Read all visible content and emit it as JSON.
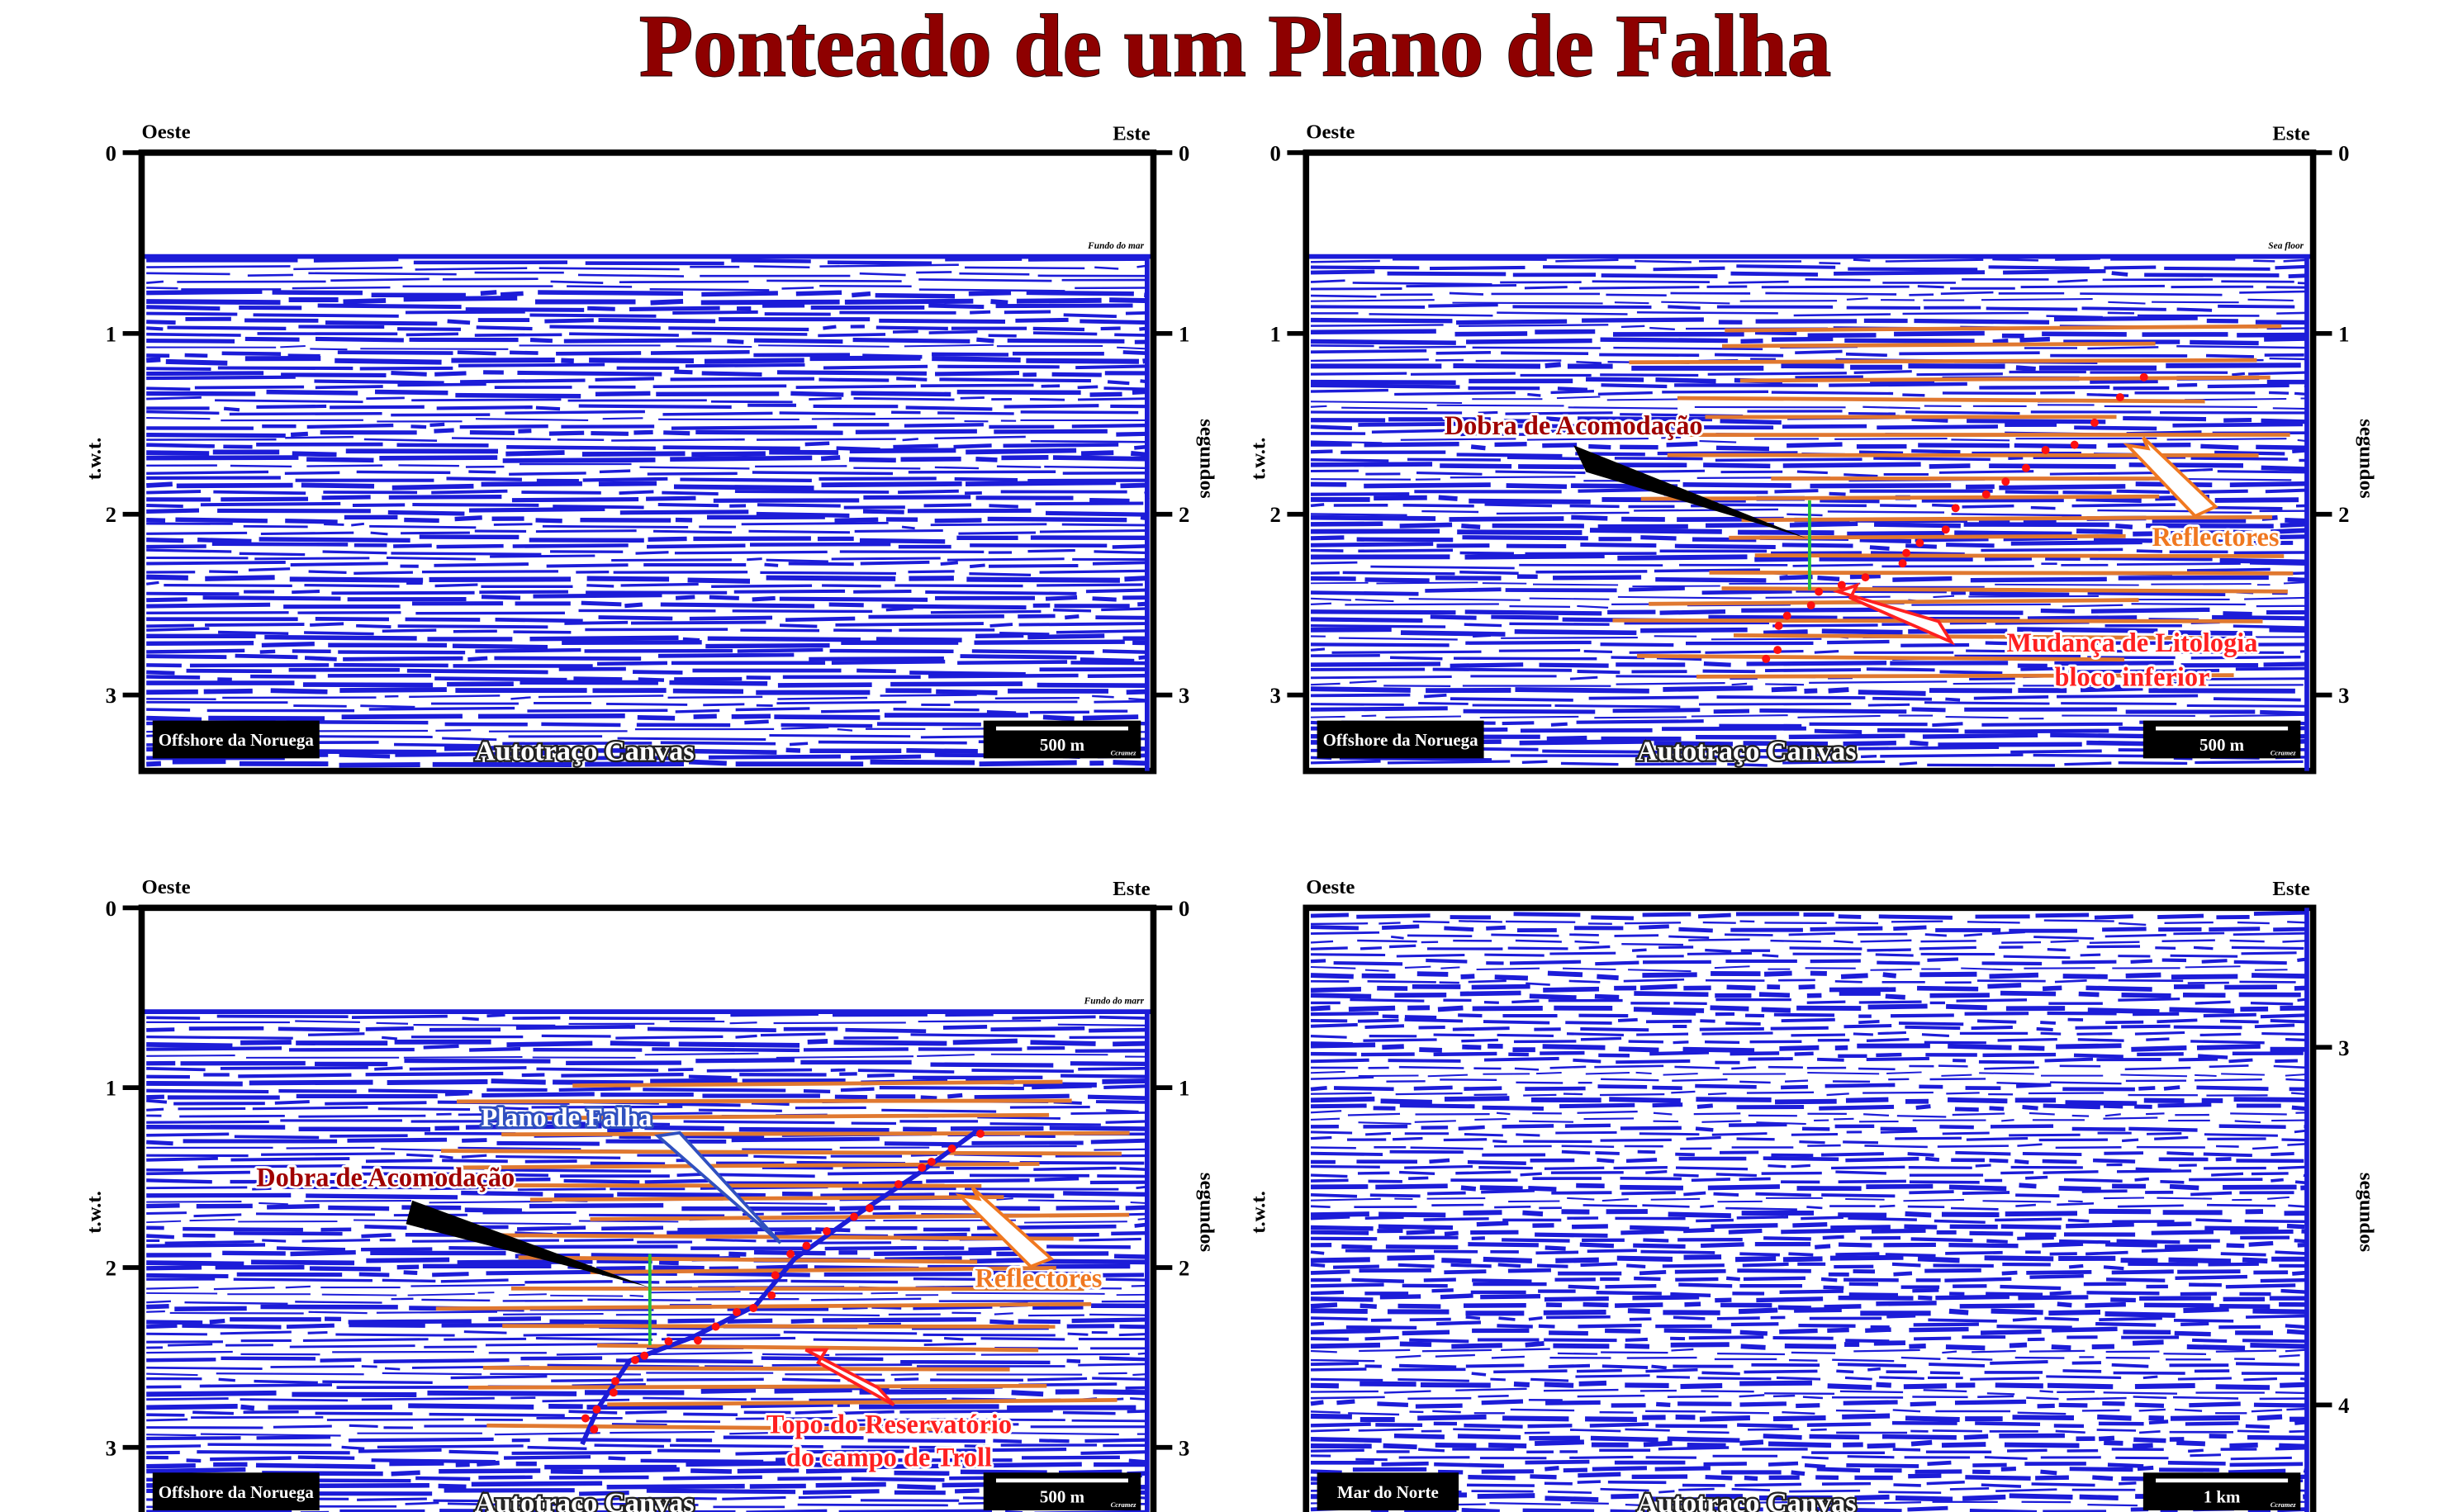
{
  "title": "Ponteado de um Plano de Falha",
  "panels": [
    {
      "top_left": "Oeste",
      "top_right": "Este",
      "axis_left": "t.w.t.",
      "axis_right": "segundos",
      "ylim": [
        0,
        3.42
      ],
      "yticks_left": [
        0,
        1,
        2,
        3
      ],
      "yticks_right": [
        0,
        1,
        2,
        3
      ],
      "seafloor": "Fundo do mar",
      "location": "Offshore da Noruega",
      "caption": "Autotraço Canvas",
      "scale": "500 m",
      "credit": "Ccramez",
      "annotations": []
    },
    {
      "top_left": "Oeste",
      "top_right": "Este",
      "axis_left": "t.w.t.",
      "axis_right": "segundos",
      "ylim": [
        0,
        3.42
      ],
      "yticks_left": [
        0,
        1,
        2,
        3
      ],
      "yticks_right": [
        0,
        1,
        2,
        3
      ],
      "seafloor": "Sea floor",
      "location": "Offshore da Noruega",
      "caption": "Autotraço Canvas",
      "scale": "500 m",
      "credit": "Ccramez",
      "annotations": [
        "Dobra de  Acomodação",
        "Reflectores",
        "Mudança de Litologia",
        "bloco inferior"
      ]
    },
    {
      "top_left": "Oeste",
      "top_right": "Este",
      "axis_left": "t.w.t.",
      "axis_right": "segundos",
      "ylim": [
        0,
        3.42
      ],
      "yticks_left": [
        0,
        1,
        2,
        3
      ],
      "yticks_right": [
        0,
        1,
        2,
        3
      ],
      "seafloor": "Fundo do marr",
      "location": "Offshore da Noruega",
      "caption": "Autotraço Canvas",
      "scale": "500 m",
      "credit": "Ccramez",
      "annotations": [
        "Plano de Falha",
        "Dobra de  Acomodação",
        "Reflectores",
        "Topo do Reservatório",
        "do campo de Troll"
      ]
    },
    {
      "top_left": "Oeste",
      "top_right": "Este",
      "axis_left": "t.w.t.",
      "axis_right": "segundos",
      "ylim": [
        2.61,
        4.33
      ],
      "yticks_right": [
        3,
        4
      ],
      "location": "Mar do Norte",
      "caption": "Autotraço Canvas",
      "scale": "1 km",
      "credit": "Ccramez",
      "annotations": []
    }
  ]
}
